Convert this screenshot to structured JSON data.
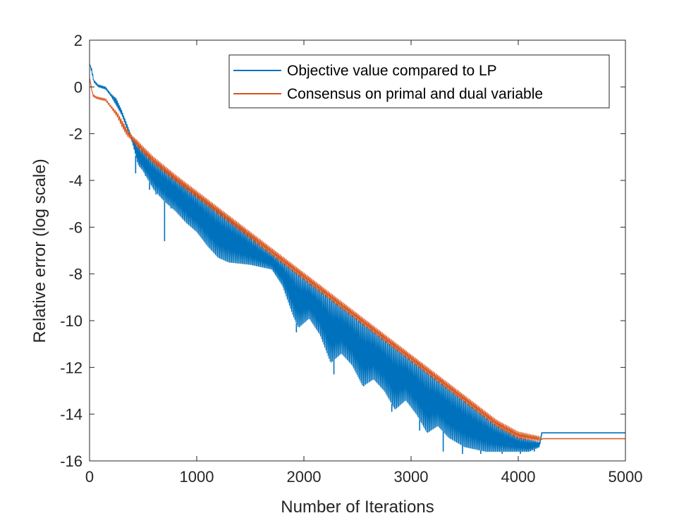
{
  "chart_data": {
    "type": "line",
    "title": "",
    "xlabel": "Number of Iterations",
    "ylabel": "Relative error (log scale)",
    "xlim": [
      0,
      5000
    ],
    "ylim": [
      -16,
      2
    ],
    "xticks": [
      0,
      1000,
      2000,
      3000,
      4000,
      5000
    ],
    "yticks": [
      2,
      0,
      -2,
      -4,
      -6,
      -8,
      -10,
      -12,
      -14,
      -16
    ],
    "grid": false,
    "legend_position": "top-right",
    "series": [
      {
        "name": "Objective value compared to LP",
        "color": "#0072BD",
        "upper": [
          [
            0,
            1.0
          ],
          [
            20,
            0.8
          ],
          [
            40,
            0.3
          ],
          [
            80,
            0.1
          ],
          [
            150,
            0.0
          ],
          [
            200,
            -0.3
          ],
          [
            250,
            -0.5
          ],
          [
            300,
            -1.0
          ],
          [
            350,
            -1.6
          ],
          [
            400,
            -2.2
          ],
          [
            450,
            -2.5
          ],
          [
            500,
            -2.75
          ],
          [
            600,
            -3.2
          ],
          [
            800,
            -3.9
          ],
          [
            1000,
            -4.6
          ],
          [
            1200,
            -5.3
          ],
          [
            1400,
            -6.0
          ],
          [
            1600,
            -6.8
          ],
          [
            1800,
            -7.5
          ],
          [
            2000,
            -8.2
          ],
          [
            2200,
            -8.9
          ],
          [
            2400,
            -9.6
          ],
          [
            2600,
            -10.3
          ],
          [
            2800,
            -11.0
          ],
          [
            3000,
            -11.7
          ],
          [
            3200,
            -12.4
          ],
          [
            3400,
            -13.1
          ],
          [
            3600,
            -13.8
          ],
          [
            3800,
            -14.5
          ],
          [
            4000,
            -15.0
          ],
          [
            4200,
            -15.2
          ]
        ],
        "lower": [
          [
            0,
            1.0
          ],
          [
            40,
            0.2
          ],
          [
            80,
            0.0
          ],
          [
            150,
            -0.1
          ],
          [
            200,
            -0.4
          ],
          [
            300,
            -1.2
          ],
          [
            400,
            -2.4
          ],
          [
            450,
            -3.3
          ],
          [
            500,
            -3.6
          ],
          [
            550,
            -4.0
          ],
          [
            600,
            -4.4
          ],
          [
            700,
            -4.9
          ],
          [
            800,
            -5.3
          ],
          [
            900,
            -5.8
          ],
          [
            1000,
            -6.2
          ],
          [
            1100,
            -6.8
          ],
          [
            1200,
            -7.3
          ],
          [
            1300,
            -7.5
          ],
          [
            1500,
            -7.6
          ],
          [
            1700,
            -7.8
          ],
          [
            1800,
            -8.5
          ],
          [
            1900,
            -9.8
          ],
          [
            1950,
            -10.3
          ],
          [
            2050,
            -9.9
          ],
          [
            2150,
            -10.6
          ],
          [
            2250,
            -11.8
          ],
          [
            2350,
            -11.4
          ],
          [
            2450,
            -11.9
          ],
          [
            2550,
            -12.8
          ],
          [
            2650,
            -12.5
          ],
          [
            2750,
            -13.0
          ],
          [
            2850,
            -13.8
          ],
          [
            2950,
            -13.4
          ],
          [
            3050,
            -14.0
          ],
          [
            3150,
            -14.8
          ],
          [
            3250,
            -14.5
          ],
          [
            3350,
            -15.0
          ],
          [
            3500,
            -15.4
          ],
          [
            3700,
            -15.6
          ],
          [
            3900,
            -15.6
          ],
          [
            4100,
            -15.6
          ],
          [
            4200,
            -15.4
          ]
        ],
        "dips": [
          [
            430,
            -3.7
          ],
          [
            470,
            -3.4
          ],
          [
            520,
            -3.8
          ],
          [
            560,
            -4.4
          ],
          [
            620,
            -4.6
          ],
          [
            700,
            -6.6
          ],
          [
            760,
            -5.2
          ],
          [
            1930,
            -10.5
          ],
          [
            2280,
            -12.3
          ],
          [
            2560,
            -12.8
          ],
          [
            2820,
            -13.9
          ],
          [
            3080,
            -14.7
          ],
          [
            3300,
            -15.6
          ],
          [
            3480,
            -15.7
          ],
          [
            3650,
            -15.7
          ],
          [
            3850,
            -15.7
          ],
          [
            4020,
            -15.7
          ],
          [
            4150,
            -15.6
          ]
        ],
        "plateau": [
          [
            4200,
            -15.3
          ],
          [
            4220,
            -14.8
          ],
          [
            5000,
            -14.8
          ]
        ]
      },
      {
        "name": "Consensus on primal and dual variable",
        "color": "#D95319",
        "upper": [
          [
            0,
            0.4
          ],
          [
            30,
            -0.3
          ],
          [
            60,
            -0.4
          ],
          [
            100,
            -0.45
          ],
          [
            150,
            -0.5
          ],
          [
            200,
            -0.8
          ],
          [
            260,
            -1.1
          ],
          [
            300,
            -1.4
          ],
          [
            350,
            -1.8
          ],
          [
            400,
            -2.1
          ],
          [
            450,
            -2.3
          ],
          [
            500,
            -2.55
          ],
          [
            600,
            -3.0
          ],
          [
            800,
            -3.75
          ],
          [
            1000,
            -4.45
          ],
          [
            1200,
            -5.15
          ],
          [
            1400,
            -5.85
          ],
          [
            1600,
            -6.55
          ],
          [
            1800,
            -7.25
          ],
          [
            2000,
            -7.95
          ],
          [
            2200,
            -8.65
          ],
          [
            2400,
            -9.35
          ],
          [
            2600,
            -10.05
          ],
          [
            2800,
            -10.75
          ],
          [
            3000,
            -11.45
          ],
          [
            3200,
            -12.15
          ],
          [
            3400,
            -12.85
          ],
          [
            3600,
            -13.55
          ],
          [
            3800,
            -14.25
          ],
          [
            4000,
            -14.75
          ],
          [
            4200,
            -14.95
          ]
        ],
        "lower": [
          [
            0,
            0.4
          ],
          [
            30,
            -0.4
          ],
          [
            60,
            -0.5
          ],
          [
            100,
            -0.55
          ],
          [
            150,
            -0.6
          ],
          [
            200,
            -0.9
          ],
          [
            260,
            -1.3
          ],
          [
            300,
            -1.7
          ],
          [
            350,
            -2.1
          ],
          [
            400,
            -2.3
          ],
          [
            450,
            -2.6
          ],
          [
            500,
            -2.85
          ],
          [
            600,
            -3.3
          ],
          [
            800,
            -4.05
          ],
          [
            1000,
            -4.75
          ],
          [
            1200,
            -5.45
          ],
          [
            1400,
            -6.15
          ],
          [
            1600,
            -6.85
          ],
          [
            1800,
            -7.55
          ],
          [
            2000,
            -8.25
          ],
          [
            2200,
            -8.95
          ],
          [
            2400,
            -9.65
          ],
          [
            2600,
            -10.35
          ],
          [
            2800,
            -11.05
          ],
          [
            3000,
            -11.75
          ],
          [
            3200,
            -12.45
          ],
          [
            3400,
            -13.15
          ],
          [
            3600,
            -13.85
          ],
          [
            3800,
            -14.55
          ],
          [
            4000,
            -15.05
          ],
          [
            4200,
            -15.15
          ]
        ],
        "plateau": [
          [
            4200,
            -15.1
          ],
          [
            4230,
            -15.05
          ],
          [
            5000,
            -15.05
          ]
        ]
      }
    ]
  }
}
